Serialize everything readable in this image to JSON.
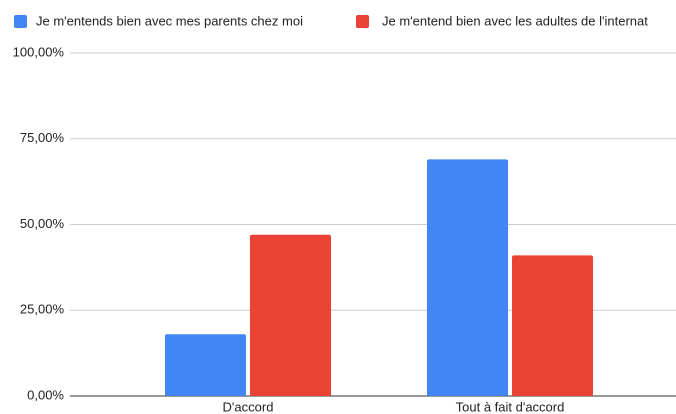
{
  "chart_data": {
    "type": "bar",
    "categories": [
      "D'accord",
      "Tout à fait d'accord"
    ],
    "series": [
      {
        "name": "Je m'entends bien avec mes parents chez moi",
        "color": "#4285f4",
        "values": [
          18,
          69
        ]
      },
      {
        "name": "Je m'entend bien avec les adultes de l'internat",
        "color": "#ea4335",
        "values": [
          47,
          41
        ]
      }
    ],
    "ylim": [
      0,
      100
    ],
    "yticks": [
      {
        "value": 0,
        "label": "0,00%"
      },
      {
        "value": 25,
        "label": "25,00%"
      },
      {
        "value": 50,
        "label": "50,00%"
      },
      {
        "value": 75,
        "label": "75,00%"
      },
      {
        "value": 100,
        "label": "100,00%"
      }
    ],
    "grid": true,
    "legend": "top"
  }
}
